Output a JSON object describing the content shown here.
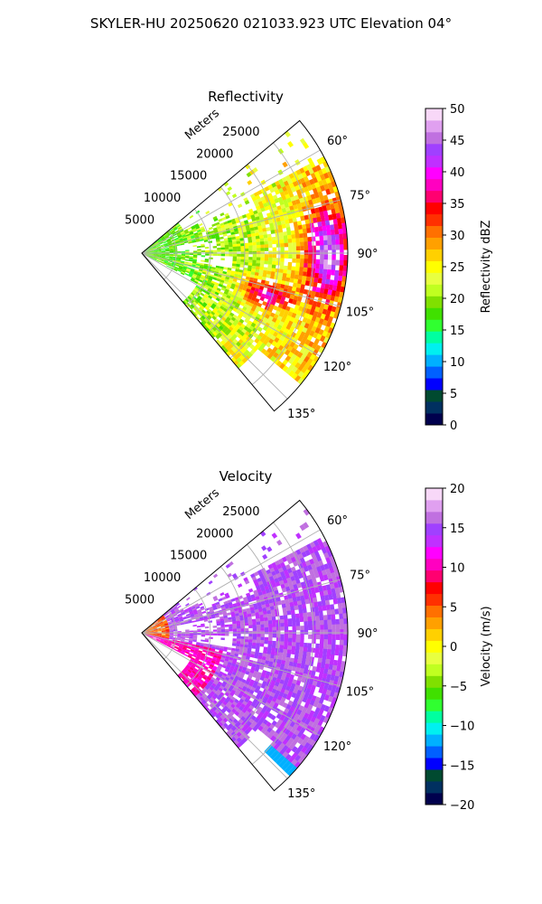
{
  "figure": {
    "title": "SKYLER-HU  20250620  021033.923 UTC Elevation 04°"
  },
  "chart_data": [
    {
      "type": "heatmap",
      "projection": "polar-sector",
      "title": "Reflectivity",
      "radial_axis_label": "Meters",
      "radial_ticks": [
        5000,
        10000,
        15000,
        20000,
        25000
      ],
      "radial_tick_labels": [
        "5000",
        "10000",
        "15000",
        "20000",
        "25000"
      ],
      "radial_max": 30000,
      "azimuth_range": [
        50,
        140
      ],
      "azimuth_ticks": [
        60,
        75,
        90,
        105,
        120,
        135
      ],
      "azimuth_tick_labels": [
        "60°",
        "75°",
        "90°",
        "105°",
        "120°",
        "135°"
      ],
      "grid": true,
      "colorbar": {
        "label": "Reflectivity dBZ",
        "range": [
          0,
          50
        ],
        "ticks": [
          0,
          5,
          10,
          15,
          20,
          25,
          30,
          35,
          40,
          45,
          50
        ],
        "tick_labels": [
          "0",
          "5",
          "10",
          "15",
          "20",
          "25",
          "30",
          "35",
          "40",
          "45",
          "50"
        ],
        "colors": [
          "#00004d",
          "#003060",
          "#004a30",
          "#0000ff",
          "#0060ff",
          "#00b0ff",
          "#00f0f0",
          "#00ffa0",
          "#30ff30",
          "#40e000",
          "#80e000",
          "#c0ff20",
          "#e8ff40",
          "#ffff00",
          "#ffd000",
          "#ffa000",
          "#ff7000",
          "#ff3000",
          "#ff0000",
          "#ff0070",
          "#ff00c0",
          "#ff00ff",
          "#c030ff",
          "#a040ff",
          "#c070e0",
          "#e0a0f0",
          "#f8d8f8"
        ]
      }
    },
    {
      "type": "heatmap",
      "projection": "polar-sector",
      "title": "Velocity",
      "radial_axis_label": "Meters",
      "radial_ticks": [
        5000,
        10000,
        15000,
        20000,
        25000
      ],
      "radial_tick_labels": [
        "5000",
        "10000",
        "15000",
        "20000",
        "25000"
      ],
      "radial_max": 30000,
      "azimuth_range": [
        50,
        140
      ],
      "azimuth_ticks": [
        60,
        75,
        90,
        105,
        120,
        135
      ],
      "azimuth_tick_labels": [
        "60°",
        "75°",
        "90°",
        "105°",
        "120°",
        "135°"
      ],
      "grid": true,
      "colorbar": {
        "label": "Velocity (m/s)",
        "range": [
          -20,
          20
        ],
        "ticks": [
          -20,
          -15,
          -10,
          -5,
          0,
          5,
          10,
          15,
          20
        ],
        "tick_labels": [
          "−20",
          "−15",
          "−10",
          "−5",
          "0",
          "5",
          "10",
          "15",
          "20"
        ],
        "colors": [
          "#00004d",
          "#003060",
          "#004a30",
          "#0000ff",
          "#0060ff",
          "#00b0ff",
          "#00f0f0",
          "#00ffa0",
          "#30ff30",
          "#40e000",
          "#80e000",
          "#c0ff20",
          "#e8ff40",
          "#ffff00",
          "#ffd000",
          "#ffa000",
          "#ff7000",
          "#ff3000",
          "#ff0000",
          "#ff0070",
          "#ff00c0",
          "#ff00ff",
          "#c030ff",
          "#a040ff",
          "#c070e0",
          "#e0a0f0",
          "#f8d8f8"
        ]
      }
    }
  ]
}
